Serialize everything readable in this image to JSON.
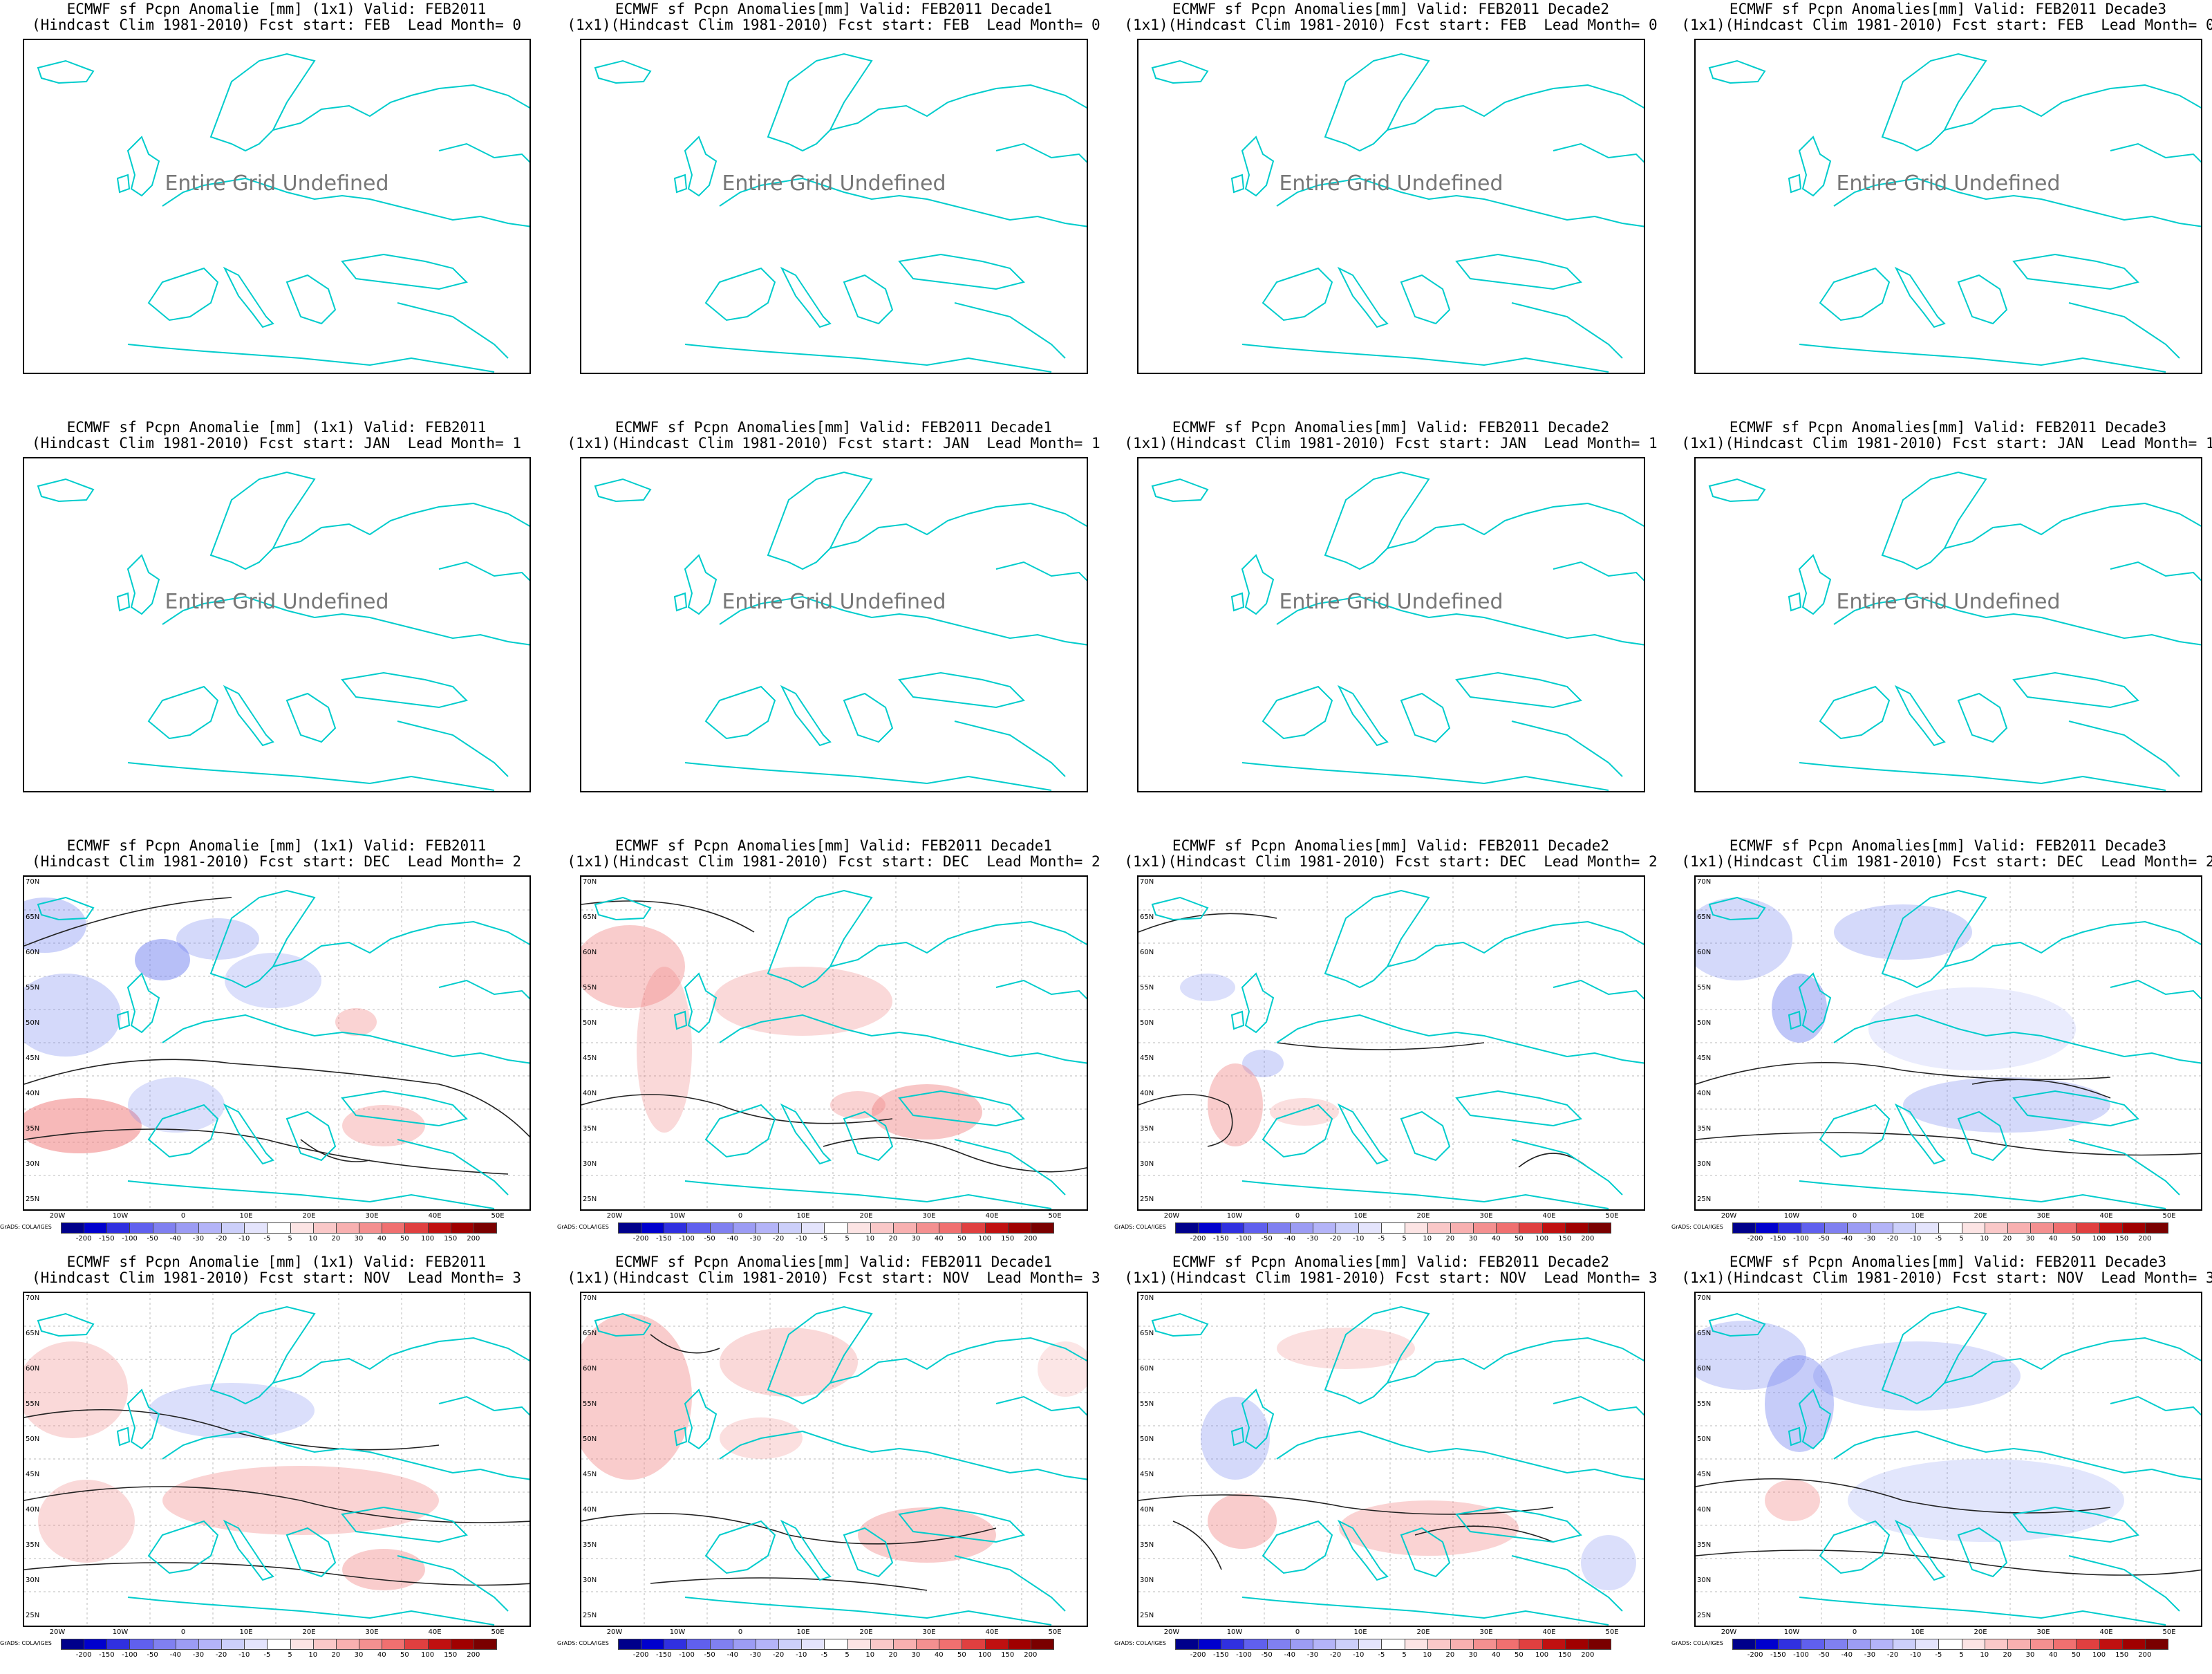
{
  "undefined_text": "Entire Grid Undefined",
  "credit": "GrADS: COLA/IGES",
  "y_labels": [
    "70N",
    "65N",
    "60N",
    "55N",
    "50N",
    "45N",
    "40N",
    "35N",
    "30N",
    "25N"
  ],
  "x_labels": [
    "20W",
    "10W",
    "0",
    "10E",
    "20E",
    "30E",
    "40E",
    "50E"
  ],
  "colorbar": {
    "ticks": [
      "-200",
      "-150",
      "-100",
      "-50",
      "-40",
      "-30",
      "-20",
      "-10",
      "-5",
      "5",
      "10",
      "20",
      "30",
      "40",
      "50",
      "100",
      "150",
      "200"
    ],
    "colors": [
      "#00008b",
      "#0000cd",
      "#3030e0",
      "#6060ee",
      "#8080f0",
      "#9c9cf4",
      "#b4b4f8",
      "#cccffa",
      "#e4e4fc",
      "#ffffff",
      "#fce4e4",
      "#fac8c8",
      "#f8b0b0",
      "#f49090",
      "#f07070",
      "#e04040",
      "#c01010",
      "#a00000",
      "#7a0000"
    ]
  },
  "map_colors": {
    "coast": "#00cccc",
    "blue": "#7080f0",
    "red": "#f08080"
  },
  "panels": [
    {
      "title1": "ECMWF sf Pcpn Anomalie [mm] (1x1) Valid: FEB2011",
      "title2": "(Hindcast Clim 1981-2010) Fcst start: FEB  Lead Month= 0",
      "defined": false,
      "pattern": 0
    },
    {
      "title1": "ECMWF sf Pcpn Anomalies[mm] Valid: FEB2011 Decade1",
      "title2": "(1x1)(Hindcast Clim 1981-2010) Fcst start: FEB  Lead Month= 0",
      "defined": false,
      "pattern": 0
    },
    {
      "title1": "ECMWF sf Pcpn Anomalies[mm] Valid: FEB2011 Decade2",
      "title2": "(1x1)(Hindcast Clim 1981-2010) Fcst start: FEB  Lead Month= 0",
      "defined": false,
      "pattern": 0
    },
    {
      "title1": "ECMWF sf Pcpn Anomalies[mm] Valid: FEB2011 Decade3",
      "title2": "(1x1)(Hindcast Clim 1981-2010) Fcst start: FEB  Lead Month= 0",
      "defined": false,
      "pattern": 0
    },
    {
      "title1": "ECMWF sf Pcpn Anomalie [mm] (1x1) Valid: FEB2011",
      "title2": "(Hindcast Clim 1981-2010) Fcst start: JAN  Lead Month= 1",
      "defined": false,
      "pattern": 0
    },
    {
      "title1": "ECMWF sf Pcpn Anomalies[mm] Valid: FEB2011 Decade1",
      "title2": "(1x1)(Hindcast Clim 1981-2010) Fcst start: JAN  Lead Month= 1",
      "defined": false,
      "pattern": 0
    },
    {
      "title1": "ECMWF sf Pcpn Anomalies[mm] Valid: FEB2011 Decade2",
      "title2": "(1x1)(Hindcast Clim 1981-2010) Fcst start: JAN  Lead Month= 1",
      "defined": false,
      "pattern": 0
    },
    {
      "title1": "ECMWF sf Pcpn Anomalies[mm] Valid: FEB2011 Decade3",
      "title2": "(1x1)(Hindcast Clim 1981-2010) Fcst start: JAN  Lead Month= 1",
      "defined": false,
      "pattern": 0
    },
    {
      "title1": "ECMWF sf Pcpn Anomalie [mm] (1x1) Valid: FEB2011",
      "title2": "(Hindcast Clim 1981-2010) Fcst start: DEC  Lead Month= 2",
      "defined": true,
      "pattern": 1
    },
    {
      "title1": "ECMWF sf Pcpn Anomalies[mm] Valid: FEB2011 Decade1",
      "title2": "(1x1)(Hindcast Clim 1981-2010) Fcst start: DEC  Lead Month= 2",
      "defined": true,
      "pattern": 2
    },
    {
      "title1": "ECMWF sf Pcpn Anomalies[mm] Valid: FEB2011 Decade2",
      "title2": "(1x1)(Hindcast Clim 1981-2010) Fcst start: DEC  Lead Month= 2",
      "defined": true,
      "pattern": 3
    },
    {
      "title1": "ECMWF sf Pcpn Anomalies[mm] Valid: FEB2011 Decade3",
      "title2": "(1x1)(Hindcast Clim 1981-2010) Fcst start: DEC  Lead Month= 2",
      "defined": true,
      "pattern": 4
    },
    {
      "title1": "ECMWF sf Pcpn Anomalie [mm] (1x1) Valid: FEB2011",
      "title2": "(Hindcast Clim 1981-2010) Fcst start: NOV  Lead Month= 3",
      "defined": true,
      "pattern": 5
    },
    {
      "title1": "ECMWF sf Pcpn Anomalies[mm] Valid: FEB2011 Decade1",
      "title2": "(1x1)(Hindcast Clim 1981-2010) Fcst start: NOV  Lead Month= 3",
      "defined": true,
      "pattern": 6
    },
    {
      "title1": "ECMWF sf Pcpn Anomalies[mm] Valid: FEB2011 Decade2",
      "title2": "(1x1)(Hindcast Clim 1981-2010) Fcst start: NOV  Lead Month= 3",
      "defined": true,
      "pattern": 7
    },
    {
      "title1": "ECMWF sf Pcpn Anomalies[mm] Valid: FEB2011 Decade3",
      "title2": "(1x1)(Hindcast Clim 1981-2010) Fcst start: NOV  Lead Month= 3",
      "defined": true,
      "pattern": 8
    }
  ]
}
